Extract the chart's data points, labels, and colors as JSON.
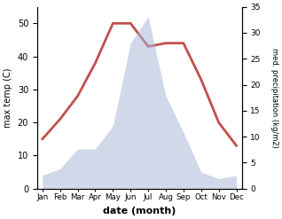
{
  "months": [
    "Jan",
    "Feb",
    "Mar",
    "Apr",
    "May",
    "Jun",
    "Jul",
    "Aug",
    "Sep",
    "Oct",
    "Nov",
    "Dec"
  ],
  "temperature": [
    15,
    21,
    28,
    38,
    50,
    50,
    43,
    44,
    44,
    33,
    20,
    13
  ],
  "precipitation": [
    4,
    6,
    12,
    12,
    19,
    44,
    52,
    28,
    17,
    5,
    3,
    4
  ],
  "temp_color": "#c0504d",
  "precip_color": "#aab8d8",
  "precip_fill_alpha": 0.55,
  "temp_ylim": [
    0,
    55
  ],
  "precip_ylim": [
    0,
    35
  ],
  "temp_yticks": [
    0,
    10,
    20,
    30,
    40,
    50
  ],
  "precip_yticks": [
    0,
    5,
    10,
    15,
    20,
    25,
    30,
    35
  ],
  "xlabel": "date (month)",
  "ylabel_left": "max temp (C)",
  "ylabel_right": "med. precipitation (kg/m2)",
  "temp_linewidth": 2.0,
  "background_color": "#ffffff",
  "figsize": [
    3.18,
    2.47
  ],
  "dpi": 100
}
